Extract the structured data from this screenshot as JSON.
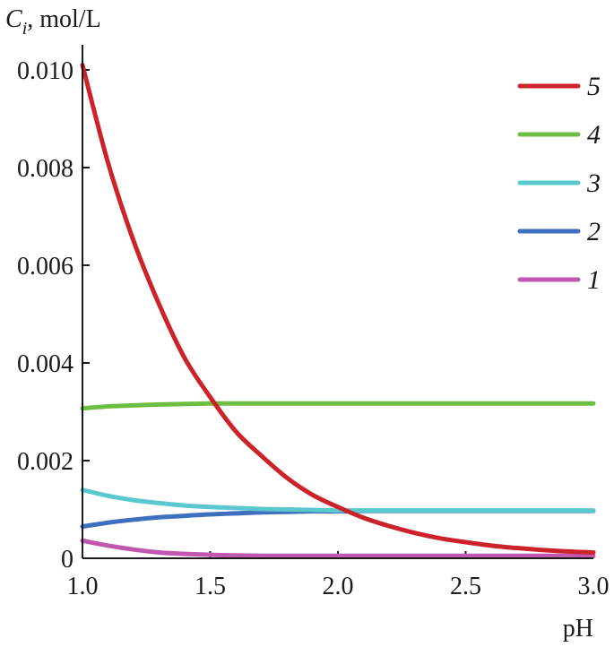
{
  "chart_data": {
    "type": "line",
    "title": "",
    "ylabel_main": "C",
    "ylabel_sub": "i",
    "ylabel_unit": ", mol/L",
    "xlabel": "pH",
    "xlim": [
      1.0,
      3.0
    ],
    "ylim": [
      0,
      0.01
    ],
    "x_ticks": [
      1.0,
      1.5,
      2.0,
      2.5,
      3.0
    ],
    "x_tick_labels": [
      "1.0",
      "1.5",
      "2.0",
      "2.5",
      "3.0"
    ],
    "y_ticks": [
      0,
      0.002,
      0.004,
      0.006,
      0.008,
      0.01
    ],
    "y_tick_labels": [
      "0",
      "0.002",
      "0.004",
      "0.006",
      "0.008",
      "0.010"
    ],
    "legend_position": "top-right",
    "x": [
      1.0,
      1.1,
      1.2,
      1.3,
      1.4,
      1.5,
      1.6,
      1.7,
      1.8,
      1.9,
      2.0,
      2.1,
      2.2,
      2.3,
      2.4,
      2.5,
      2.6,
      2.7,
      2.8,
      2.9,
      3.0
    ],
    "series": [
      {
        "name": "5",
        "color": "#cc2229",
        "values": [
          0.0101,
          0.0081,
          0.0065,
          0.0052,
          0.0041,
          0.0033,
          0.0026,
          0.0021,
          0.00165,
          0.0013,
          0.00105,
          0.00083,
          0.00066,
          0.00052,
          0.00041,
          0.00033,
          0.00026,
          0.00021,
          0.00017,
          0.00014,
          0.00012
        ]
      },
      {
        "name": "4",
        "color": "#6cbf43",
        "values": [
          0.00307,
          0.00311,
          0.00313,
          0.00315,
          0.00316,
          0.00317,
          0.00317,
          0.00317,
          0.00317,
          0.00317,
          0.00317,
          0.00317,
          0.00317,
          0.00317,
          0.00317,
          0.00317,
          0.00317,
          0.00317,
          0.00317,
          0.00317,
          0.00317
        ]
      },
      {
        "name": "3",
        "color": "#5bc8cf",
        "values": [
          0.0014,
          0.00128,
          0.00119,
          0.00113,
          0.00108,
          0.00105,
          0.00103,
          0.00101,
          0.001,
          0.00099,
          0.00098,
          0.00098,
          0.00098,
          0.00098,
          0.00098,
          0.00098,
          0.00098,
          0.00098,
          0.00098,
          0.00098,
          0.00098
        ]
      },
      {
        "name": "2",
        "color": "#3f6fbf",
        "values": [
          0.00065,
          0.00073,
          0.00079,
          0.00084,
          0.00087,
          0.0009,
          0.00092,
          0.00094,
          0.00095,
          0.00096,
          0.00096,
          0.00097,
          0.00097,
          0.00097,
          0.00097,
          0.00097,
          0.00097,
          0.00097,
          0.00097,
          0.00097,
          0.00097
        ]
      },
      {
        "name": "1",
        "color": "#c257b0",
        "values": [
          0.00036,
          0.00026,
          0.00018,
          0.00012,
          9e-05,
          7e-05,
          6e-05,
          5e-05,
          5e-05,
          5e-05,
          5e-05,
          5e-05,
          5e-05,
          5e-05,
          5e-05,
          5e-05,
          5e-05,
          5e-05,
          5e-05,
          5e-05,
          5e-05
        ]
      }
    ]
  }
}
